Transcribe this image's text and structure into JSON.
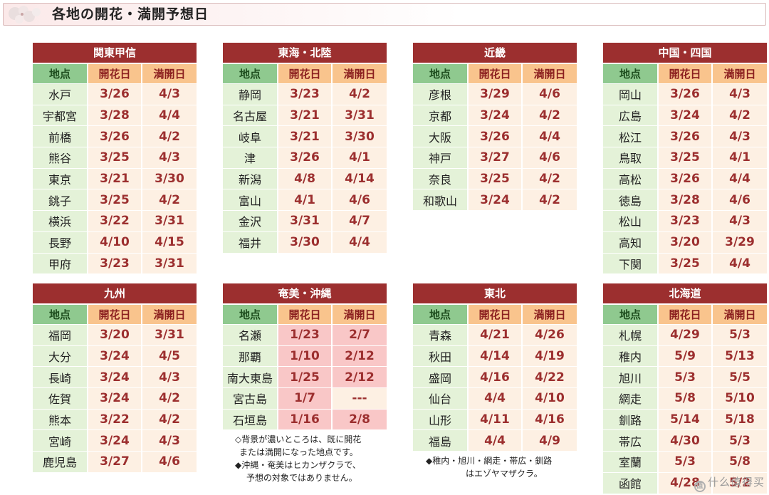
{
  "title": "各地の開花・満開予想日",
  "columns": {
    "place": "地点",
    "bloom": "開花日",
    "full": "満開日"
  },
  "regions": [
    {
      "name": "関東甲信",
      "rows": [
        {
          "place": "水戸",
          "bloom": "3/26",
          "full": "4/3"
        },
        {
          "place": "宇都宮",
          "bloom": "3/28",
          "full": "4/4"
        },
        {
          "place": "前橋",
          "bloom": "3/26",
          "full": "4/2"
        },
        {
          "place": "熊谷",
          "bloom": "3/25",
          "full": "4/3"
        },
        {
          "place": "東京",
          "bloom": "3/21",
          "full": "3/30"
        },
        {
          "place": "銚子",
          "bloom": "3/25",
          "full": "4/2"
        },
        {
          "place": "横浜",
          "bloom": "3/22",
          "full": "3/31"
        },
        {
          "place": "長野",
          "bloom": "4/10",
          "full": "4/15"
        },
        {
          "place": "甲府",
          "bloom": "3/23",
          "full": "3/31"
        }
      ]
    },
    {
      "name": "東海・北陸",
      "rows": [
        {
          "place": "静岡",
          "bloom": "3/23",
          "full": "4/2"
        },
        {
          "place": "名古屋",
          "bloom": "3/21",
          "full": "3/31"
        },
        {
          "place": "岐阜",
          "bloom": "3/21",
          "full": "3/30"
        },
        {
          "place": "津",
          "bloom": "3/26",
          "full": "4/1"
        },
        {
          "place": "新潟",
          "bloom": "4/8",
          "full": "4/14"
        },
        {
          "place": "富山",
          "bloom": "4/1",
          "full": "4/6"
        },
        {
          "place": "金沢",
          "bloom": "3/31",
          "full": "4/7"
        },
        {
          "place": "福井",
          "bloom": "3/30",
          "full": "4/4"
        }
      ]
    },
    {
      "name": "近畿",
      "rows": [
        {
          "place": "彦根",
          "bloom": "3/29",
          "full": "4/6"
        },
        {
          "place": "京都",
          "bloom": "3/24",
          "full": "4/2"
        },
        {
          "place": "大阪",
          "bloom": "3/26",
          "full": "4/4"
        },
        {
          "place": "神戸",
          "bloom": "3/27",
          "full": "4/6"
        },
        {
          "place": "奈良",
          "bloom": "3/25",
          "full": "4/2"
        },
        {
          "place": "和歌山",
          "bloom": "3/24",
          "full": "4/2"
        }
      ]
    },
    {
      "name": "中国・四国",
      "rows": [
        {
          "place": "岡山",
          "bloom": "3/26",
          "full": "4/3"
        },
        {
          "place": "広島",
          "bloom": "3/24",
          "full": "4/2"
        },
        {
          "place": "松江",
          "bloom": "3/26",
          "full": "4/3"
        },
        {
          "place": "鳥取",
          "bloom": "3/25",
          "full": "4/1"
        },
        {
          "place": "高松",
          "bloom": "3/26",
          "full": "4/4"
        },
        {
          "place": "徳島",
          "bloom": "3/28",
          "full": "4/6"
        },
        {
          "place": "松山",
          "bloom": "3/23",
          "full": "4/3"
        },
        {
          "place": "高知",
          "bloom": "3/20",
          "full": "3/29"
        },
        {
          "place": "下関",
          "bloom": "3/25",
          "full": "4/4"
        }
      ]
    },
    {
      "name": "九州",
      "rows": [
        {
          "place": "福岡",
          "bloom": "3/20",
          "full": "3/31"
        },
        {
          "place": "大分",
          "bloom": "3/24",
          "full": "4/5"
        },
        {
          "place": "長崎",
          "bloom": "3/24",
          "full": "4/3"
        },
        {
          "place": "佐賀",
          "bloom": "3/24",
          "full": "4/2"
        },
        {
          "place": "熊本",
          "bloom": "3/22",
          "full": "4/2"
        },
        {
          "place": "宮崎",
          "bloom": "3/24",
          "full": "4/3"
        },
        {
          "place": "鹿児島",
          "bloom": "3/27",
          "full": "4/6"
        }
      ]
    },
    {
      "name": "奄美・沖縄",
      "rows": [
        {
          "place": "名瀬",
          "bloom": "1/23",
          "full": "2/7",
          "bloom_hl": true,
          "full_hl": true
        },
        {
          "place": "那覇",
          "bloom": "1/10",
          "full": "2/12",
          "bloom_hl": true,
          "full_hl": true
        },
        {
          "place": "南大東島",
          "bloom": "1/25",
          "full": "2/12",
          "bloom_hl": true,
          "full_hl": true
        },
        {
          "place": "宮古島",
          "bloom": "1/7",
          "full": "---",
          "bloom_hl": true,
          "full_hl": false
        },
        {
          "place": "石垣島",
          "bloom": "1/16",
          "full": "2/8",
          "bloom_hl": true,
          "full_hl": true
        }
      ]
    },
    {
      "name": "東北",
      "rows": [
        {
          "place": "青森",
          "bloom": "4/21",
          "full": "4/26"
        },
        {
          "place": "秋田",
          "bloom": "4/14",
          "full": "4/19"
        },
        {
          "place": "盛岡",
          "bloom": "4/16",
          "full": "4/22"
        },
        {
          "place": "仙台",
          "bloom": "4/4",
          "full": "4/10"
        },
        {
          "place": "山形",
          "bloom": "4/11",
          "full": "4/16"
        },
        {
          "place": "福島",
          "bloom": "4/4",
          "full": "4/9"
        }
      ]
    },
    {
      "name": "北海道",
      "rows": [
        {
          "place": "札幌",
          "bloom": "4/29",
          "full": "5/3"
        },
        {
          "place": "稚内",
          "bloom": "5/9",
          "full": "5/13"
        },
        {
          "place": "旭川",
          "bloom": "5/3",
          "full": "5/5"
        },
        {
          "place": "網走",
          "bloom": "5/8",
          "full": "5/10"
        },
        {
          "place": "釧路",
          "bloom": "5/14",
          "full": "5/18"
        },
        {
          "place": "帯広",
          "bloom": "4/30",
          "full": "5/3"
        },
        {
          "place": "室蘭",
          "bloom": "5/3",
          "full": "5/8"
        },
        {
          "place": "函館",
          "bloom": "4/28",
          "full": "5/2"
        }
      ]
    }
  ],
  "notes": {
    "okinawa": [
      "◇背景が濃いところは、既に開花",
      "または満開になった地点です。",
      "◆沖縄・奄美はヒカンザクラで、",
      "予想の対象ではありません。"
    ],
    "tohoku": [
      "◆稚内・旭川・網走・帯広・釧路",
      "はエゾヤマザクラ。"
    ]
  },
  "watermark": "什么值得买",
  "colors": {
    "header": "#9c2f2f",
    "place_header": "#8fc98f",
    "date_header": "#f9c48d",
    "place_cell": "#e4f2d8",
    "date_cell": "#fdf0e3",
    "highlight": "#f9c7c7"
  }
}
